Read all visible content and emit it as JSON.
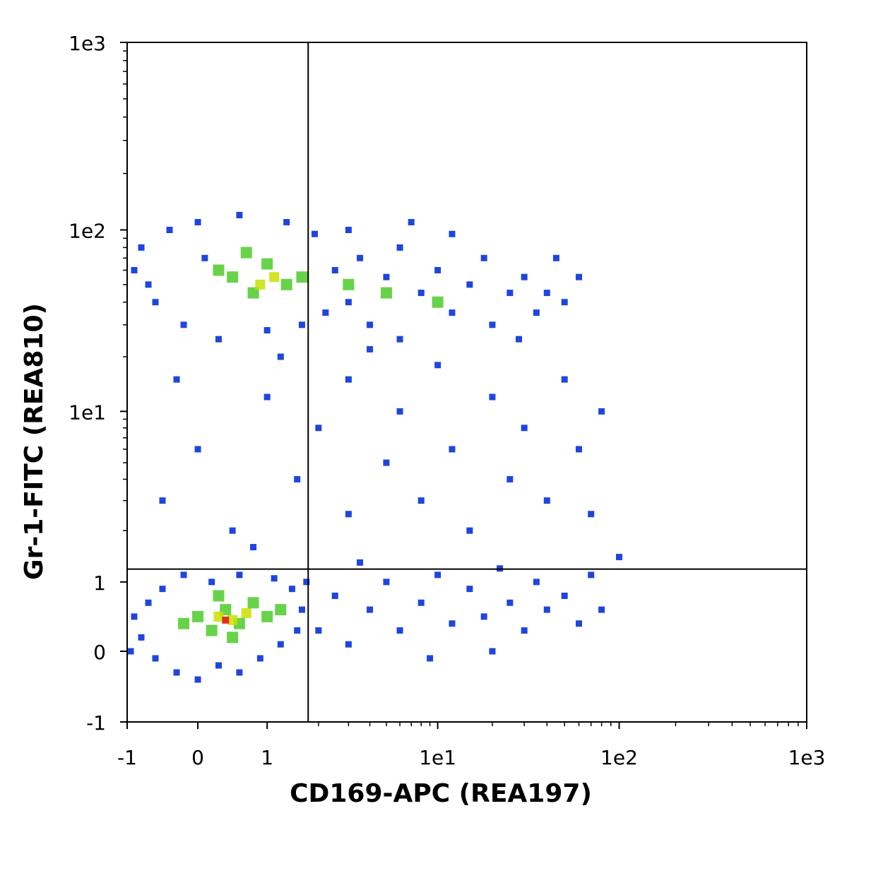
{
  "chart_data": {
    "type": "scatter",
    "x_label": "CD169-APC (REA197)",
    "y_label": "Gr-1-FITC (REA810)",
    "scale": "biexponential",
    "xlim": [
      -1,
      1000
    ],
    "ylim": [
      -1,
      1000
    ],
    "xticks": [
      -1,
      0,
      1,
      {
        "value": 10,
        "label": "1e1"
      },
      {
        "value": 100,
        "label": "1e2"
      },
      {
        "value": 1000,
        "label": "1e3"
      }
    ],
    "yticks": [
      -1,
      0,
      1,
      {
        "value": 10,
        "label": "1e1"
      },
      {
        "value": 100,
        "label": "1e2"
      },
      {
        "value": 1000,
        "label": "1e3"
      }
    ],
    "xminorticks": [
      2,
      3,
      4,
      5,
      6,
      7,
      8,
      9,
      20,
      30,
      40,
      50,
      60,
      70,
      80,
      90,
      200,
      300,
      400,
      500,
      600,
      700,
      800,
      900
    ],
    "yminorticks": [
      2,
      3,
      4,
      5,
      6,
      7,
      8,
      9,
      20,
      30,
      40,
      50,
      60,
      70,
      80,
      90,
      200,
      300,
      400,
      500,
      600,
      700,
      800,
      900
    ],
    "gates": {
      "x": 1.74,
      "y": 1.19
    },
    "series": [
      {
        "color": "#1f46dc",
        "x": [
          -0.8,
          -0.9,
          -0.7,
          -0.5,
          -0.6,
          -0.3,
          0,
          0.3,
          0.6,
          0.9,
          1.2,
          1.5,
          1.6,
          1.4,
          1.1,
          0.6,
          0.2,
          -0.2,
          1.7,
          -0.95,
          -0.9,
          -0.8,
          -0.6,
          -0.4,
          -0.2,
          0,
          0.3,
          0.6,
          1,
          1.3,
          1.6,
          1.9,
          2.2,
          -0.7,
          0.1,
          2.5,
          3,
          3.5,
          4,
          5,
          6,
          6,
          8,
          10,
          12,
          15,
          18,
          20,
          25,
          30,
          35,
          40,
          50,
          60,
          45,
          28,
          3,
          7,
          12,
          2,
          2.5,
          3,
          4,
          5,
          6,
          8,
          10,
          12,
          15,
          18,
          22,
          25,
          30,
          35,
          40,
          50,
          60,
          70,
          80,
          20,
          9,
          3.5,
          -0.5,
          0,
          0.5,
          1,
          1.5,
          2,
          3,
          3,
          5,
          6,
          8,
          10,
          12,
          15,
          20,
          25,
          30,
          40,
          50,
          60,
          70,
          80,
          1.2,
          -0.3,
          4,
          0.8,
          100
        ],
        "y": [
          0.2,
          0.5,
          0.7,
          0.9,
          -0.1,
          -0.3,
          -0.4,
          -0.2,
          -0.3,
          -0.1,
          0.1,
          0.3,
          0.6,
          0.9,
          1.05,
          1.1,
          1,
          1.1,
          1,
          0,
          60,
          80,
          40,
          100,
          30,
          110,
          25,
          120,
          28,
          110,
          30,
          95,
          35,
          50,
          70,
          60,
          40,
          70,
          30,
          55,
          80,
          25,
          45,
          60,
          35,
          50,
          70,
          30,
          45,
          55,
          35,
          45,
          40,
          55,
          70,
          25,
          100,
          110,
          95,
          0.3,
          0.8,
          0.1,
          0.6,
          1,
          0.3,
          0.7,
          1.1,
          0.4,
          0.9,
          0.5,
          1.2,
          0.7,
          0.3,
          1,
          0.6,
          0.8,
          0.4,
          1.1,
          0.6,
          0,
          -0.1,
          1.3,
          3,
          6,
          2,
          12,
          4,
          8,
          15,
          2.5,
          5,
          10,
          3,
          18,
          6,
          2,
          12,
          4,
          8,
          3,
          15,
          6,
          2.5,
          10,
          20,
          15,
          22,
          1.6,
          1.4
        ]
      },
      {
        "color": "#4ecb2a",
        "x": [
          0,
          0.2,
          0.4,
          0.6,
          0.8,
          1,
          -0.2,
          0.3,
          1.2,
          0.5,
          0.5,
          0.8,
          1,
          1.3,
          0.3,
          1.6,
          0.7,
          3,
          5,
          10
        ],
        "y": [
          0.5,
          0.3,
          0.6,
          0.4,
          0.7,
          0.5,
          0.4,
          0.8,
          0.6,
          0.2,
          55,
          45,
          65,
          50,
          60,
          55,
          75,
          50,
          45,
          40
        ]
      },
      {
        "color": "#c8e000",
        "x": [
          0.3,
          0.5,
          0.7,
          0.9,
          1.1
        ],
        "y": [
          0.5,
          0.45,
          0.55,
          50,
          55
        ]
      },
      {
        "color": "#e03020",
        "x": [
          0.4
        ],
        "y": [
          0.45
        ]
      }
    ]
  }
}
